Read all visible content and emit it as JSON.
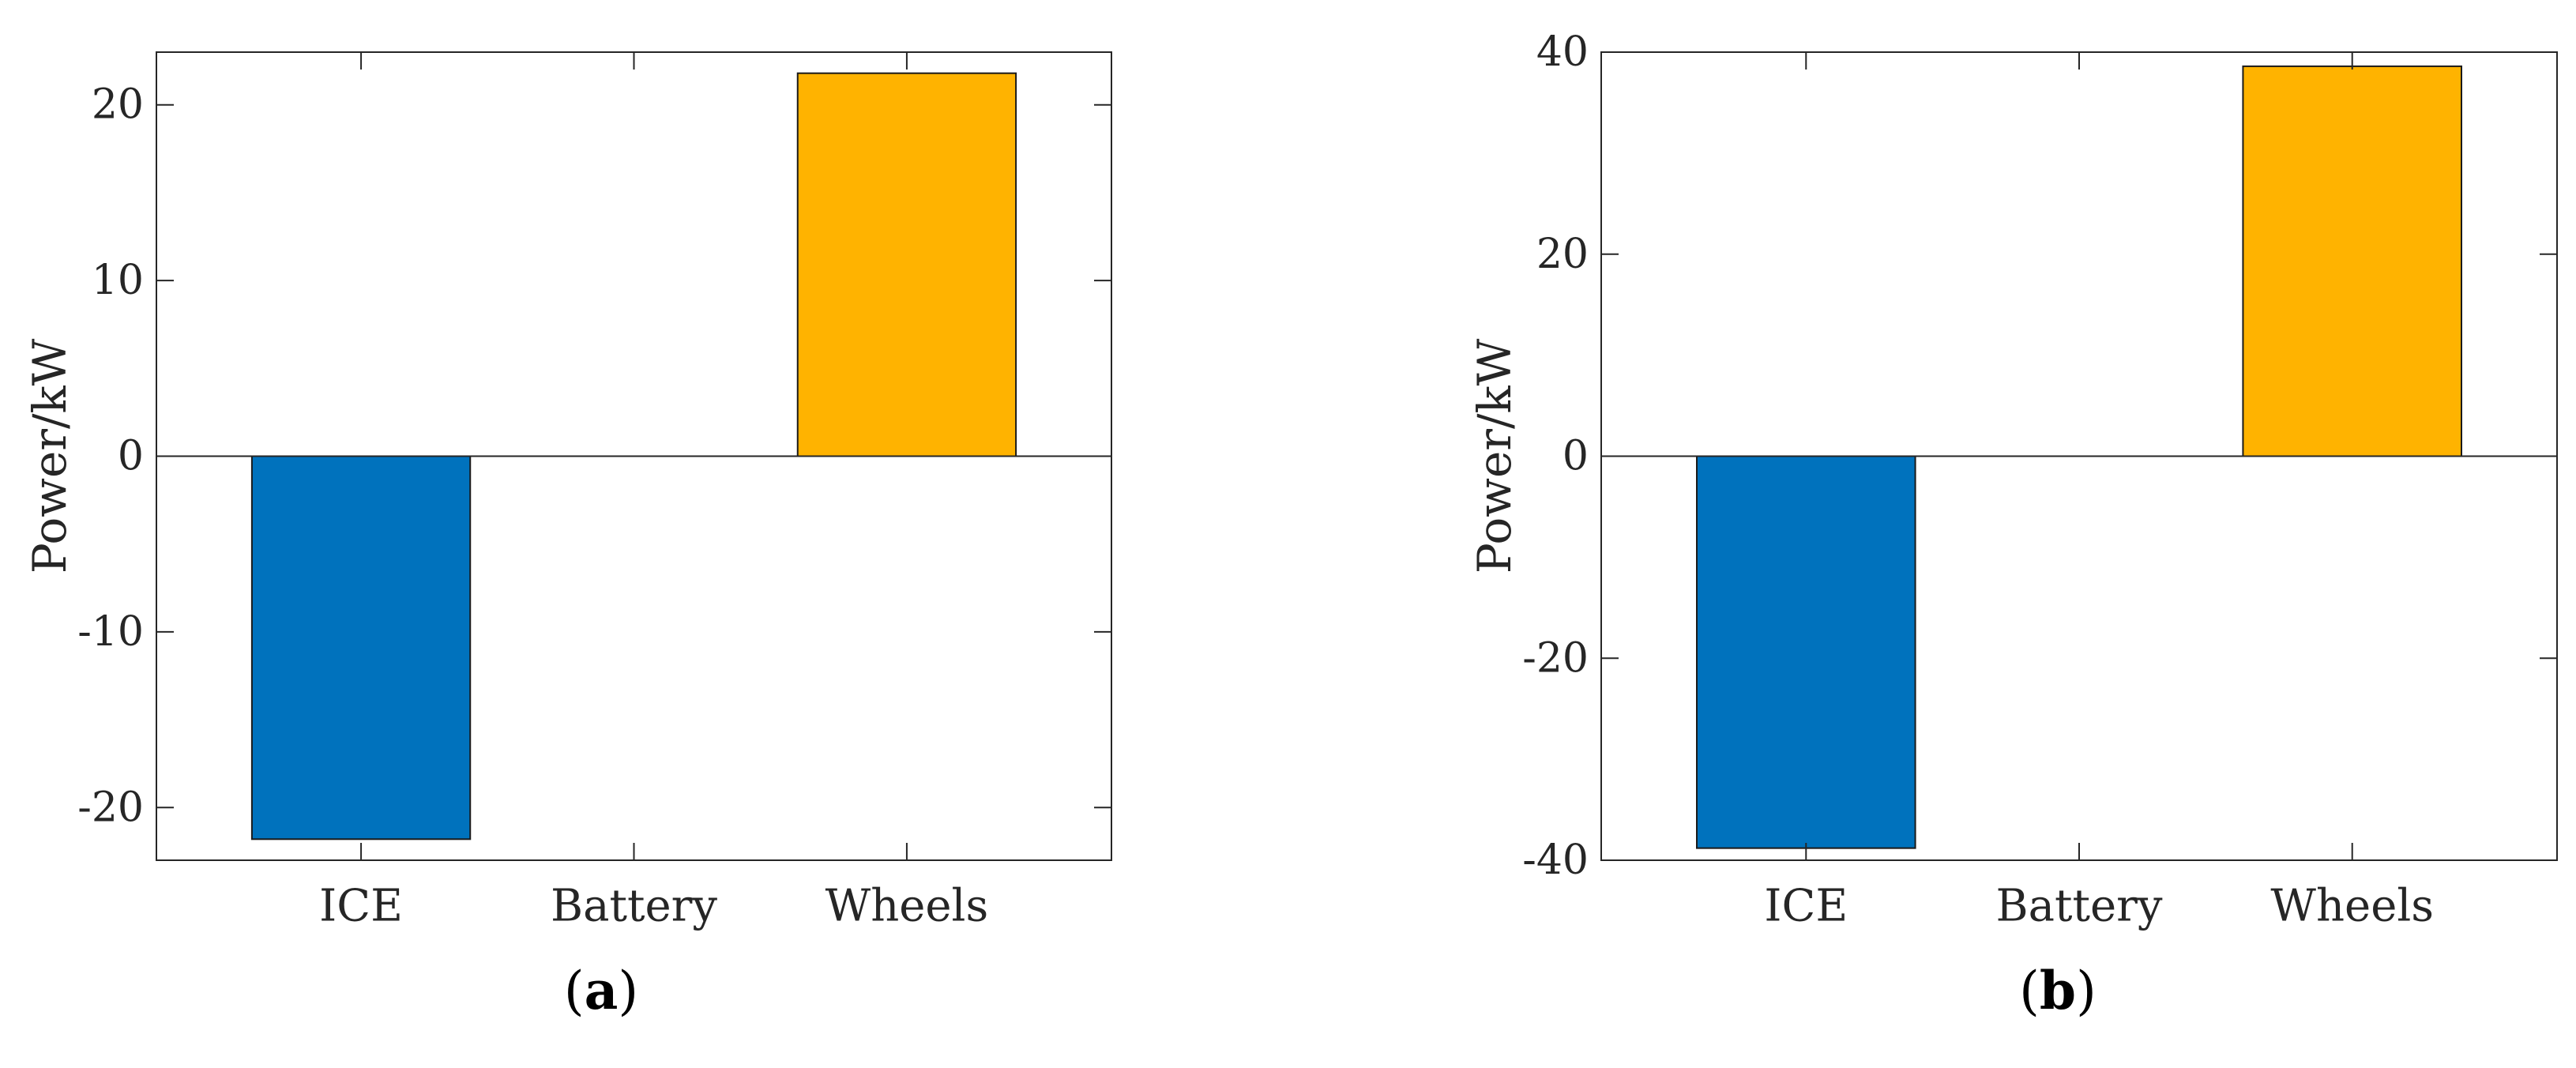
{
  "chart_data": [
    {
      "type": "bar",
      "id": "a",
      "caption_letter": "a",
      "categories": [
        "ICE",
        "Battery",
        "Wheels"
      ],
      "values": [
        -21.8,
        0,
        21.8
      ],
      "colors": [
        "#0072BD",
        "#0072BD",
        "#FFB300"
      ],
      "title": "",
      "xlabel": "",
      "ylabel": "Power/kW",
      "ylim": [
        -23,
        23
      ],
      "yticks": [
        -20,
        -10,
        0,
        10,
        20
      ],
      "ytick_labels": [
        "-20",
        "-10",
        "0",
        "10",
        "20"
      ],
      "grid": false
    },
    {
      "type": "bar",
      "id": "b",
      "caption_letter": "b",
      "categories": [
        "ICE",
        "Battery",
        "Wheels"
      ],
      "values": [
        -38.8,
        0,
        38.6
      ],
      "colors": [
        "#0072BD",
        "#0072BD",
        "#FFB300"
      ],
      "title": "",
      "xlabel": "",
      "ylabel": "Power/kW",
      "ylim": [
        -40,
        40
      ],
      "yticks": [
        -40,
        -20,
        0,
        20,
        40
      ],
      "ytick_labels": [
        "-40",
        "-20",
        "0",
        "20",
        "40"
      ],
      "grid": false
    }
  ]
}
